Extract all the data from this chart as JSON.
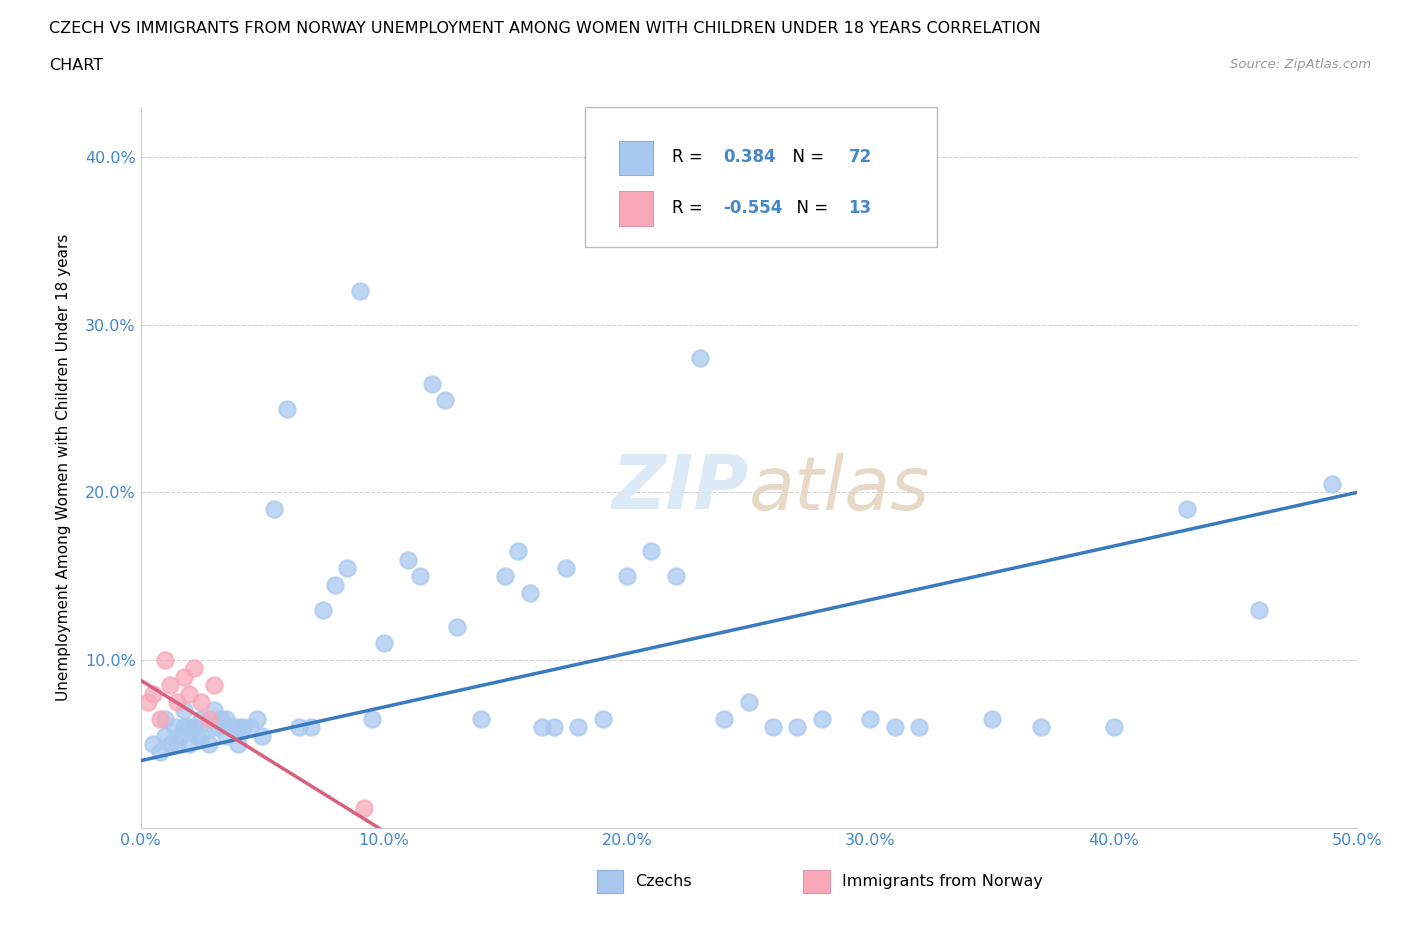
{
  "title_line1": "CZECH VS IMMIGRANTS FROM NORWAY UNEMPLOYMENT AMONG WOMEN WITH CHILDREN UNDER 18 YEARS CORRELATION",
  "title_line2": "CHART",
  "source_text": "Source: ZipAtlas.com",
  "ylabel": "Unemployment Among Women with Children Under 18 years",
  "xlim": [
    0.0,
    0.5
  ],
  "ylim": [
    0.0,
    0.43
  ],
  "xticks": [
    0.0,
    0.1,
    0.2,
    0.3,
    0.4,
    0.5
  ],
  "yticks": [
    0.0,
    0.1,
    0.2,
    0.3,
    0.4
  ],
  "legend_labels_bottom": [
    "Czechs",
    "Immigrants from Norway"
  ],
  "R_czech": 0.384,
  "N_czech": 72,
  "R_norway": -0.554,
  "N_norway": 13,
  "czech_color": "#a8c8f0",
  "norway_color": "#f8a8b8",
  "czech_line_color": "#3a7abf",
  "norway_line_color": "#d9607a",
  "text_blue": "#4488cc",
  "czech_x": [
    0.005,
    0.008,
    0.01,
    0.01,
    0.012,
    0.014,
    0.015,
    0.016,
    0.018,
    0.018,
    0.02,
    0.02,
    0.022,
    0.023,
    0.025,
    0.025,
    0.028,
    0.03,
    0.03,
    0.032,
    0.033,
    0.035,
    0.035,
    0.038,
    0.04,
    0.04,
    0.042,
    0.045,
    0.048,
    0.05,
    0.055,
    0.06,
    0.065,
    0.07,
    0.075,
    0.08,
    0.085,
    0.09,
    0.095,
    0.1,
    0.11,
    0.115,
    0.12,
    0.125,
    0.13,
    0.14,
    0.15,
    0.155,
    0.16,
    0.165,
    0.17,
    0.175,
    0.18,
    0.19,
    0.2,
    0.21,
    0.22,
    0.23,
    0.24,
    0.25,
    0.26,
    0.27,
    0.28,
    0.3,
    0.31,
    0.32,
    0.35,
    0.37,
    0.4,
    0.43,
    0.46,
    0.49
  ],
  "czech_y": [
    0.05,
    0.045,
    0.055,
    0.065,
    0.05,
    0.06,
    0.05,
    0.055,
    0.06,
    0.07,
    0.05,
    0.06,
    0.06,
    0.055,
    0.055,
    0.065,
    0.05,
    0.06,
    0.07,
    0.06,
    0.065,
    0.065,
    0.055,
    0.06,
    0.05,
    0.06,
    0.06,
    0.06,
    0.065,
    0.055,
    0.19,
    0.25,
    0.06,
    0.06,
    0.13,
    0.145,
    0.155,
    0.32,
    0.065,
    0.11,
    0.16,
    0.15,
    0.265,
    0.255,
    0.12,
    0.065,
    0.15,
    0.165,
    0.14,
    0.06,
    0.06,
    0.155,
    0.06,
    0.065,
    0.15,
    0.165,
    0.15,
    0.28,
    0.065,
    0.075,
    0.06,
    0.06,
    0.065,
    0.065,
    0.06,
    0.06,
    0.065,
    0.06,
    0.06,
    0.19,
    0.13,
    0.205
  ],
  "norway_x": [
    0.003,
    0.005,
    0.008,
    0.01,
    0.012,
    0.015,
    0.018,
    0.02,
    0.022,
    0.025,
    0.028,
    0.03,
    0.092
  ],
  "norway_y": [
    0.075,
    0.08,
    0.065,
    0.1,
    0.085,
    0.075,
    0.09,
    0.08,
    0.095,
    0.075,
    0.065,
    0.085,
    0.012
  ]
}
